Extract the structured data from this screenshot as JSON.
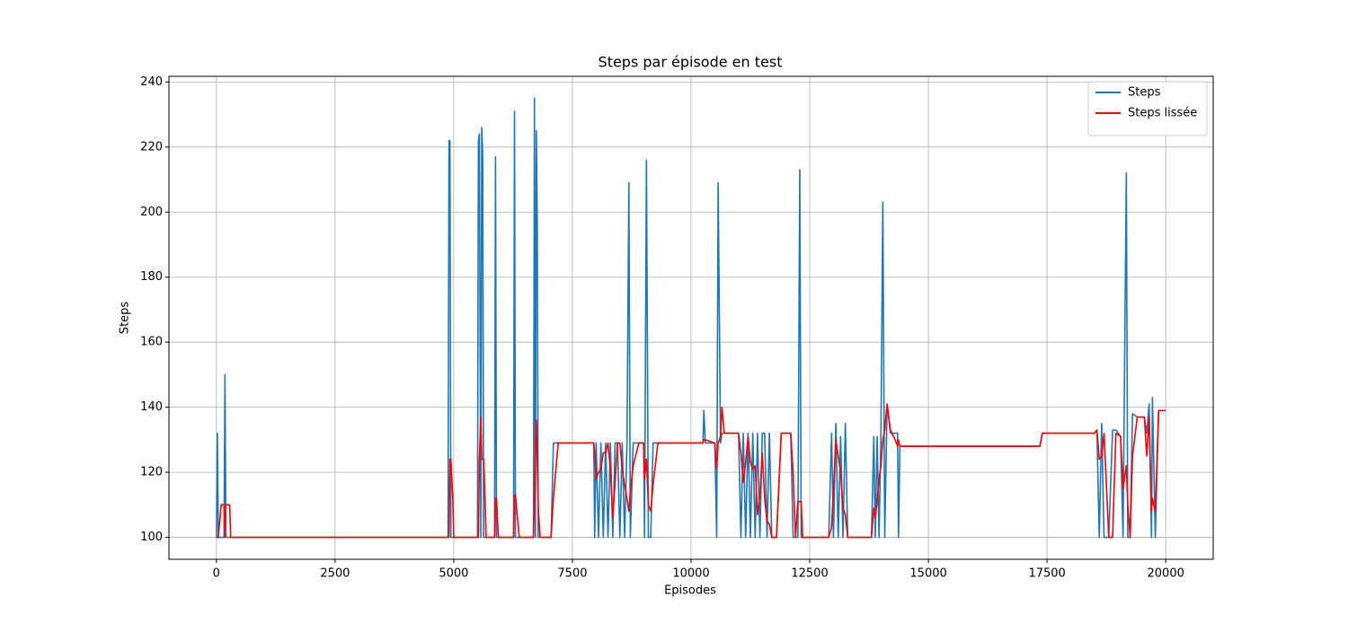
{
  "chart_data": {
    "type": "line",
    "title": "Steps par épisode en test",
    "x_label": "Episodes",
    "y_label": "Steps",
    "x": [
      0,
      20,
      40,
      100,
      160,
      180,
      200,
      280,
      300,
      4880,
      4900,
      4920,
      4940,
      4980,
      5000,
      5500,
      5520,
      5540,
      5570,
      5590,
      5610,
      5630,
      5660,
      5680,
      5860,
      5880,
      5900,
      5940,
      6260,
      6280,
      6300,
      6380,
      6680,
      6700,
      6720,
      6740,
      6760,
      6780,
      6820,
      7050,
      7100,
      7200,
      7950,
      7970,
      8000,
      8050,
      8100,
      8150,
      8200,
      8250,
      8300,
      8350,
      8400,
      8450,
      8500,
      8550,
      8600,
      8650,
      8690,
      8720,
      8780,
      8900,
      9000,
      9020,
      9060,
      9100,
      9150,
      9200,
      9300,
      10250,
      10270,
      10300,
      10500,
      10540,
      10570,
      10620,
      10650,
      10700,
      11000,
      11050,
      11100,
      11150,
      11200,
      11250,
      11300,
      11350,
      11400,
      11450,
      11500,
      11550,
      11600,
      11650,
      11700,
      11800,
      11900,
      12100,
      12150,
      12200,
      12250,
      12290,
      12320,
      12350,
      12900,
      12960,
      13000,
      13050,
      13100,
      13150,
      13200,
      13250,
      13300,
      13800,
      13850,
      13880,
      13920,
      13960,
      14000,
      14040,
      14080,
      14130,
      14200,
      14300,
      14350,
      14370,
      14400,
      17350,
      17400,
      18500,
      18550,
      18600,
      18650,
      18700,
      18800,
      18880,
      18950,
      19050,
      19100,
      19170,
      19200,
      19250,
      19300,
      19400,
      19550,
      19600,
      19650,
      19700,
      19720,
      19780,
      19850,
      20000
    ],
    "series": [
      {
        "name": "Steps",
        "color": "#1f77b4",
        "values": [
          100,
          132,
          100,
          100,
          100,
          150,
          100,
          100,
          100,
          100,
          222,
          222,
          100,
          100,
          100,
          100,
          222,
          224,
          100,
          226,
          218,
          100,
          100,
          100,
          100,
          217,
          100,
          100,
          100,
          231,
          100,
          100,
          100,
          235,
          100,
          225,
          196,
          100,
          100,
          100,
          129,
          129,
          129,
          100,
          129,
          100,
          129,
          100,
          129,
          100,
          129,
          100,
          129,
          129,
          100,
          129,
          100,
          129,
          209,
          100,
          129,
          129,
          129,
          100,
          216,
          100,
          100,
          129,
          129,
          129,
          139,
          129,
          129,
          100,
          209,
          129,
          132,
          132,
          132,
          100,
          132,
          100,
          132,
          100,
          132,
          100,
          132,
          100,
          132,
          132,
          100,
          132,
          100,
          100,
          132,
          132,
          100,
          100,
          100,
          213,
          100,
          100,
          100,
          132,
          100,
          135,
          100,
          131,
          100,
          135,
          100,
          100,
          131,
          100,
          131,
          100,
          131,
          203,
          100,
          141,
          132,
          132,
          132,
          100,
          128,
          128,
          132,
          132,
          133,
          100,
          135,
          100,
          100,
          133,
          133,
          131,
          100,
          212,
          100,
          100,
          138,
          137,
          137,
          132,
          141,
          100,
          143,
          100,
          139,
          139
        ]
      },
      {
        "name": "Steps lissée",
        "color": "#ff0000",
        "values": [
          100,
          100,
          100,
          110,
          110,
          100,
          110,
          110,
          100,
          100,
          100,
          124,
          124,
          112,
          100,
          100,
          100,
          124,
          137,
          124,
          124,
          124,
          112,
          100,
          100,
          112,
          112,
          100,
          100,
          113,
          113,
          100,
          100,
          113,
          125,
          136,
          123,
          109,
          100,
          100,
          112,
          129,
          129,
          126,
          118,
          120,
          121,
          126,
          126,
          129,
          121,
          106,
          117,
          129,
          129,
          121,
          116,
          112,
          108,
          114,
          122,
          129,
          129,
          118,
          124,
          110,
          108,
          116,
          129,
          129,
          130,
          130,
          129,
          121,
          129,
          131,
          140,
          132,
          132,
          126,
          117,
          123,
          131,
          123,
          121,
          122,
          107,
          113,
          126,
          112,
          105,
          104,
          100,
          100,
          132,
          132,
          120,
          100,
          111,
          111,
          111,
          100,
          100,
          103,
          115,
          130,
          125,
          120,
          109,
          107,
          100,
          100,
          109,
          106,
          111,
          118,
          122,
          130,
          133,
          141,
          133,
          130,
          128,
          130,
          128,
          128,
          132,
          132,
          133,
          124,
          125,
          132,
          100,
          100,
          132,
          131,
          115,
          122,
          110,
          100,
          125,
          137,
          137,
          125,
          137,
          108,
          112,
          108,
          139,
          139
        ]
      }
    ],
    "xlim": [
      -1000,
      21000
    ],
    "ylim": [
      93.25,
      241.75
    ],
    "xticks": [
      0,
      2500,
      5000,
      7500,
      10000,
      12500,
      15000,
      17500,
      20000
    ],
    "yticks": [
      100,
      120,
      140,
      160,
      180,
      200,
      220,
      240
    ],
    "grid": true,
    "legend": "upper right"
  }
}
